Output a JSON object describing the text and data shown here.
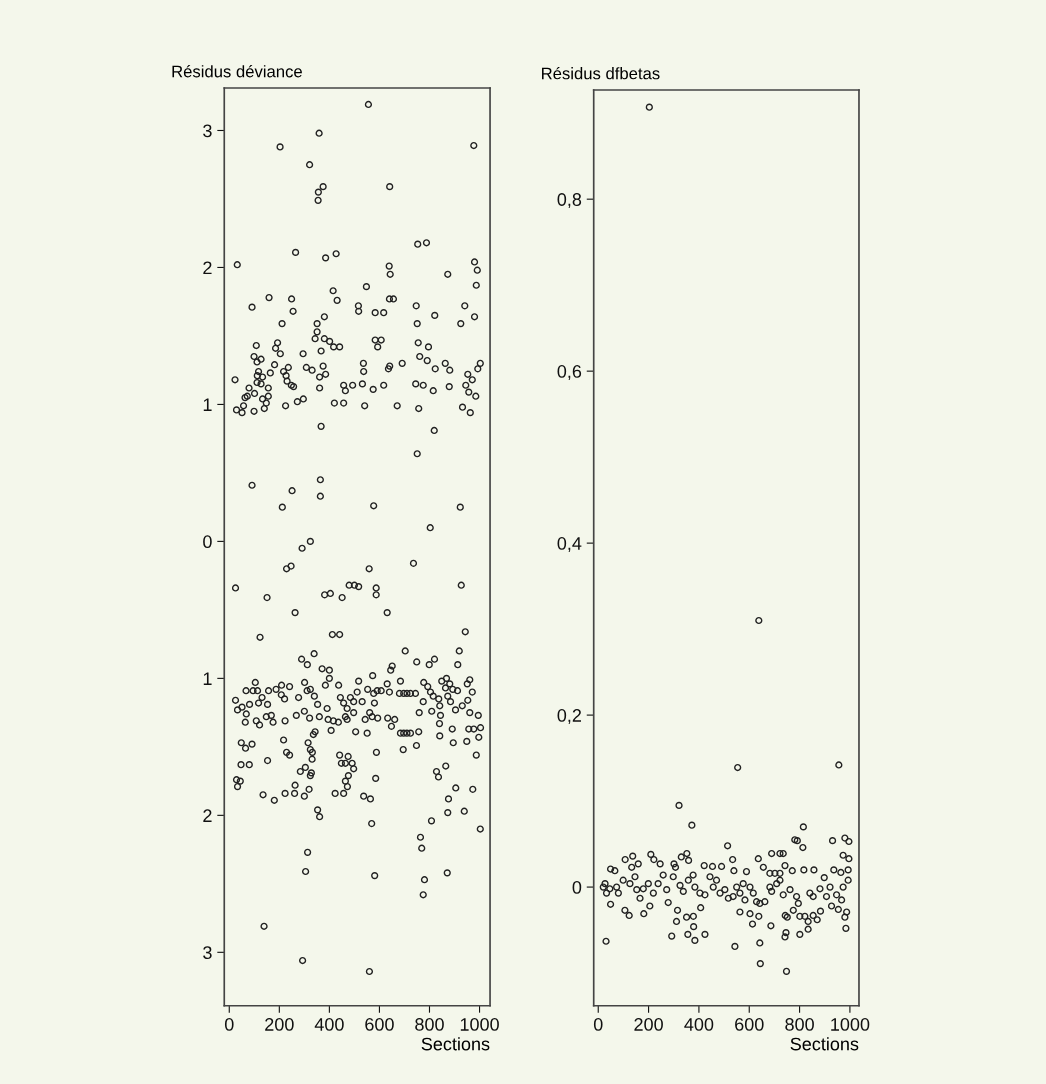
{
  "chart_data": [
    {
      "type": "scatter",
      "title": "Résidus déviance",
      "xlabel": "Sections",
      "color": "#222222",
      "marker": "circle",
      "xlim": [
        -20,
        1042
      ],
      "xticks": [
        0,
        200,
        400,
        600,
        800,
        1000
      ],
      "ylim": [
        -3.39,
        3.31
      ],
      "yticks": [
        {
          "value": -3,
          "label": "3"
        },
        {
          "value": -2,
          "label": "2"
        },
        {
          "value": -1,
          "label": "1"
        },
        0,
        1,
        2,
        3
      ],
      "x": [
        556,
        359,
        203,
        977,
        321,
        375,
        356,
        355,
        641,
        32,
        265,
        385,
        427,
        639,
        643,
        753,
        788,
        873,
        980,
        991,
        987,
        548,
        415,
        431,
        91,
        159,
        249,
        255,
        211,
        516,
        517,
        583,
        617,
        640,
        656,
        747,
        821,
        941,
        980,
        925,
        351,
        380,
        351,
        343,
        380,
        401,
        417,
        441,
        367,
        193,
        185,
        204,
        583,
        607,
        593,
        751,
        755,
        796,
        761,
        791,
        863,
        881,
        1003,
        993,
        953,
        971,
        945,
        957,
        985,
        932,
        963,
        879,
        815,
        757,
        819,
        751,
        775,
        745,
        823,
        691,
        641,
        636,
        671,
        541,
        617,
        536,
        537,
        532,
        575,
        493,
        457,
        464,
        457,
        420,
        385,
        375,
        361,
        361,
        367,
        331,
        308,
        295,
        296,
        272,
        236,
        217,
        227,
        231,
        248,
        257,
        225,
        181,
        164,
        156,
        156,
        148,
        140,
        133,
        127,
        133,
        117,
        112,
        111,
        101,
        99,
        79,
        72,
        63,
        57,
        51,
        29,
        23,
        99,
        108,
        111,
        127,
        91,
        251,
        212,
        364,
        364,
        577,
        923,
        803,
        324,
        291,
        25,
        229,
        247,
        151,
        263,
        123,
        559,
        736,
        927,
        381,
        404,
        451,
        479,
        500,
        517,
        587,
        587,
        631,
        412,
        441,
        943,
        919,
        913,
        703,
        749,
        799,
        820,
        289,
        312,
        339,
        371,
        400,
        651,
        645,
        573,
        684,
        631,
        104,
        209,
        241,
        384,
        400,
        437,
        517,
        301,
        25,
        33,
        51,
        68,
        64,
        81,
        95,
        67,
        113,
        131,
        117,
        153,
        157,
        187,
        208,
        221,
        108,
        121,
        148,
        168,
        175,
        223,
        268,
        277,
        311,
        324,
        300,
        321,
        340,
        353,
        360,
        391,
        395,
        407,
        416,
        436,
        444,
        457,
        464,
        471,
        471,
        484,
        497,
        497,
        511,
        531,
        553,
        577,
        580,
        591,
        607,
        561,
        571,
        593,
        543,
        633,
        640,
        648,
        661,
        505,
        551,
        680,
        697,
        710,
        724,
        744,
        684,
        697,
        710,
        724,
        757,
        695,
        748,
        759,
        775,
        777,
        793,
        804,
        815,
        837,
        809,
        841,
        844,
        840,
        841,
        849,
        868,
        881,
        864,
        873,
        884,
        893,
        912,
        904,
        891,
        895,
        931,
        953,
        951,
        961,
        971,
        961,
        995,
        957,
        977,
        1004,
        997,
        949,
        987,
        865,
        828,
        836,
        905,
        973,
        876,
        873,
        939,
        1003,
        808,
        764,
        769,
        780,
        775,
        871,
        569,
        581,
        560,
        293,
        139,
        305,
        313,
        353,
        361,
        48,
        65,
        91,
        47,
        80,
        29,
        44,
        33,
        153,
        135,
        180,
        217,
        229,
        241,
        223,
        261,
        263,
        300,
        319,
        284,
        304,
        324,
        328,
        331,
        332,
        324,
        315,
        336,
        343,
        423,
        457,
        441,
        448,
        464,
        475,
        491,
        497,
        476,
        464,
        472,
        537,
        564,
        585,
        588
      ],
      "values": [
        3.19,
        2.98,
        2.88,
        2.89,
        2.75,
        2.59,
        2.55,
        2.49,
        2.59,
        2.02,
        2.11,
        2.07,
        2.1,
        2.01,
        1.95,
        2.17,
        2.18,
        1.95,
        2.04,
        1.98,
        1.87,
        1.86,
        1.83,
        1.76,
        1.71,
        1.78,
        1.77,
        1.68,
        1.59,
        1.72,
        1.68,
        1.67,
        1.67,
        1.77,
        1.77,
        1.72,
        1.65,
        1.72,
        1.64,
        1.59,
        1.59,
        1.64,
        1.53,
        1.48,
        1.48,
        1.46,
        1.42,
        1.42,
        1.39,
        1.45,
        1.41,
        1.37,
        1.47,
        1.47,
        1.42,
        1.59,
        1.45,
        1.42,
        1.35,
        1.32,
        1.3,
        1.25,
        1.3,
        1.26,
        1.22,
        1.18,
        1.14,
        1.09,
        1.06,
        0.98,
        0.94,
        1.13,
        1.1,
        0.97,
        0.81,
        0.64,
        1.14,
        1.15,
        1.26,
        1.3,
        1.28,
        1.26,
        0.99,
        0.99,
        1.14,
        1.3,
        1.24,
        1.15,
        1.11,
        1.14,
        1.14,
        1.1,
        1.01,
        1.01,
        1.22,
        1.28,
        1.2,
        1.12,
        0.84,
        1.25,
        1.27,
        1.37,
        1.04,
        1.02,
        1.27,
        1.24,
        1.21,
        1.17,
        1.14,
        1.13,
        0.99,
        1.29,
        1.23,
        1.12,
        1.06,
        1.01,
        0.97,
        1.04,
        1.15,
        1.2,
        1.24,
        1.21,
        1.16,
        1.08,
        0.95,
        1.12,
        1.06,
        1.05,
        0.99,
        0.94,
        0.96,
        1.18,
        1.35,
        1.43,
        1.31,
        1.33,
        0.41,
        0.37,
        0.25,
        0.45,
        0.33,
        0.26,
        0.25,
        0.1,
        0.0,
        -0.05,
        -0.34,
        -0.2,
        -0.18,
        -0.41,
        -0.52,
        -0.7,
        -0.2,
        -0.16,
        -0.32,
        -0.39,
        -0.38,
        -0.41,
        -0.32,
        -0.32,
        -0.33,
        -0.34,
        -0.39,
        -0.52,
        -0.68,
        -0.68,
        -0.66,
        -0.8,
        -0.9,
        -0.8,
        -0.88,
        -0.9,
        -0.86,
        -0.86,
        -0.9,
        -0.82,
        -0.93,
        -0.94,
        -0.91,
        -0.94,
        -0.98,
        -1.02,
        -1.04,
        -1.03,
        -1.05,
        -1.06,
        -1.05,
        -1.0,
        -1.05,
        -1.02,
        -1.03,
        -1.16,
        -1.23,
        -1.21,
        -1.26,
        -1.32,
        -1.19,
        -1.09,
        -1.09,
        -1.09,
        -1.14,
        -1.18,
        -1.19,
        -1.09,
        -1.08,
        -1.12,
        -1.15,
        -1.31,
        -1.34,
        -1.28,
        -1.27,
        -1.32,
        -1.31,
        -1.27,
        -1.14,
        -1.09,
        -1.08,
        -1.24,
        -1.29,
        -1.13,
        -1.19,
        -1.28,
        -1.22,
        -1.3,
        -1.38,
        -1.31,
        -1.32,
        -1.14,
        -1.18,
        -1.28,
        -1.22,
        -1.3,
        -1.14,
        -1.25,
        -1.17,
        -1.1,
        -1.17,
        -1.08,
        -1.11,
        -1.18,
        -1.09,
        -1.09,
        -1.25,
        -1.28,
        -1.29,
        -1.3,
        -1.29,
        -1.1,
        -1.35,
        -1.3,
        -1.39,
        -1.4,
        -1.11,
        -1.11,
        -1.11,
        -1.11,
        -1.11,
        -1.4,
        -1.4,
        -1.4,
        -1.4,
        -1.39,
        -1.52,
        -1.49,
        -1.25,
        -1.17,
        -1.03,
        -1.06,
        -1.1,
        -1.13,
        -1.15,
        -1.24,
        -1.2,
        -1.27,
        -1.33,
        -1.42,
        -1.02,
        -1.0,
        -1.04,
        -1.07,
        -1.13,
        -1.17,
        -1.08,
        -1.09,
        -1.23,
        -1.37,
        -1.47,
        -1.2,
        -1.16,
        -1.04,
        -1.01,
        -1.1,
        -1.25,
        -1.27,
        -1.37,
        -1.37,
        -1.36,
        -1.43,
        -1.46,
        -1.56,
        -1.64,
        -1.68,
        -1.72,
        -1.8,
        -1.81,
        -1.88,
        -1.98,
        -1.97,
        -2.1,
        -2.04,
        -2.16,
        -2.24,
        -2.47,
        -2.58,
        -2.42,
        -2.06,
        -2.44,
        -3.14,
        -3.06,
        -2.81,
        -2.41,
        -2.27,
        -1.96,
        -2.01,
        -1.47,
        -1.51,
        -1.48,
        -1.63,
        -1.63,
        -1.74,
        -1.75,
        -1.79,
        -1.6,
        -1.85,
        -1.89,
        -1.45,
        -1.54,
        -1.56,
        -1.84,
        -1.84,
        -1.78,
        -1.86,
        -1.81,
        -1.68,
        -1.65,
        -1.71,
        -1.69,
        -1.59,
        -1.54,
        -1.52,
        -1.47,
        -1.41,
        -1.39,
        -1.84,
        -1.84,
        -1.56,
        -1.62,
        -1.62,
        -1.57,
        -1.62,
        -1.66,
        -1.71,
        -1.75,
        -1.79,
        -1.86,
        -1.88,
        -1.73,
        -1.54
      ]
    },
    {
      "type": "scatter",
      "title": "Résidus dfbetas",
      "xlabel": "Sections",
      "color": "#222222",
      "marker": "circle",
      "xlim": [
        -18,
        1036
      ],
      "xticks": [
        0,
        200,
        400,
        600,
        800,
        1000
      ],
      "ylim": [
        -0.138,
        0.927
      ],
      "yticks": [
        0,
        {
          "value": 0.2,
          "label": "0,2"
        },
        {
          "value": 0.4,
          "label": "0,4"
        },
        {
          "value": 0.6,
          "label": "0,6"
        },
        {
          "value": 0.8,
          "label": "0,8"
        }
      ],
      "x": [
        203,
        638,
        554,
        956,
        321,
        372,
        514,
        815,
        781,
        791,
        813,
        931,
        980,
        996,
        973,
        996,
        689,
        722,
        735,
        702,
        722,
        682,
        636,
        656,
        534,
        352,
        330,
        359,
        209,
        221,
        137,
        107,
        133,
        159,
        49,
        66,
        246,
        301,
        307,
        421,
        454,
        490,
        539,
        589,
        742,
        771,
        817,
        857,
        898,
        936,
        964,
        993,
        993,
        973,
        27,
        20,
        33,
        46,
        73,
        80,
        99,
        126,
        146,
        153,
        166,
        179,
        199,
        219,
        238,
        258,
        272,
        278,
        298,
        325,
        338,
        358,
        377,
        384,
        404,
        424,
        444,
        457,
        470,
        484,
        503,
        517,
        536,
        550,
        563,
        576,
        583,
        603,
        616,
        49,
        106,
        123,
        181,
        205,
        315,
        311,
        351,
        378,
        407,
        292,
        356,
        384,
        424,
        31,
        379,
        543,
        642,
        644,
        748,
        563,
        603,
        613,
        629,
        662,
        642,
        638,
        686,
        743,
        751,
        742,
        746,
        801,
        834,
        834,
        821,
        854,
        870,
        883,
        775,
        795,
        801,
        762,
        788,
        722,
        735,
        841,
        854,
        881,
        907,
        927,
        954,
        987,
        980,
        984,
        947,
        967,
        921,
        682,
        689,
        709
      ],
      "values": [
        0.907,
        0.31,
        0.139,
        0.142,
        0.095,
        0.072,
        0.048,
        0.07,
        0.055,
        0.054,
        0.046,
        0.054,
        0.057,
        0.053,
        0.037,
        0.033,
        0.039,
        0.039,
        0.039,
        0.016,
        0.016,
        0.016,
        0.033,
        0.023,
        0.032,
        0.039,
        0.035,
        0.031,
        0.038,
        0.032,
        0.036,
        0.032,
        0.023,
        0.027,
        0.021,
        0.019,
        0.027,
        0.027,
        0.023,
        0.025,
        0.024,
        0.024,
        0.019,
        0.018,
        0.025,
        0.019,
        0.02,
        0.02,
        0.011,
        0.02,
        0.017,
        0.02,
        0.008,
        0.0,
        0.004,
        0.0,
        -0.007,
        -0.002,
        0.0,
        -0.007,
        0.008,
        0.004,
        0.012,
        -0.003,
        -0.013,
        -0.002,
        0.004,
        -0.007,
        0.004,
        0.014,
        -0.003,
        -0.018,
        0.012,
        0.002,
        -0.005,
        0.008,
        0.014,
        0.0,
        -0.007,
        -0.009,
        0.012,
        0.0,
        0.008,
        -0.007,
        -0.003,
        -0.013,
        -0.011,
        0.0,
        -0.007,
        0.004,
        -0.015,
        0.0,
        -0.007,
        -0.02,
        -0.027,
        -0.033,
        -0.031,
        -0.022,
        -0.027,
        -0.04,
        -0.035,
        -0.034,
        -0.024,
        -0.057,
        -0.055,
        -0.062,
        -0.055,
        -0.063,
        -0.046,
        -0.069,
        -0.065,
        -0.089,
        -0.098,
        -0.029,
        -0.031,
        -0.043,
        -0.017,
        -0.017,
        -0.019,
        -0.034,
        -0.045,
        -0.033,
        -0.035,
        -0.058,
        -0.053,
        -0.055,
        -0.049,
        -0.04,
        -0.034,
        -0.033,
        -0.038,
        -0.028,
        -0.027,
        -0.019,
        -0.034,
        -0.003,
        -0.011,
        0.008,
        -0.009,
        -0.007,
        -0.011,
        -0.002,
        -0.011,
        -0.022,
        -0.026,
        -0.029,
        -0.035,
        -0.048,
        -0.009,
        -0.015,
        0.0,
        0.0,
        -0.005,
        0.004
      ]
    }
  ]
}
